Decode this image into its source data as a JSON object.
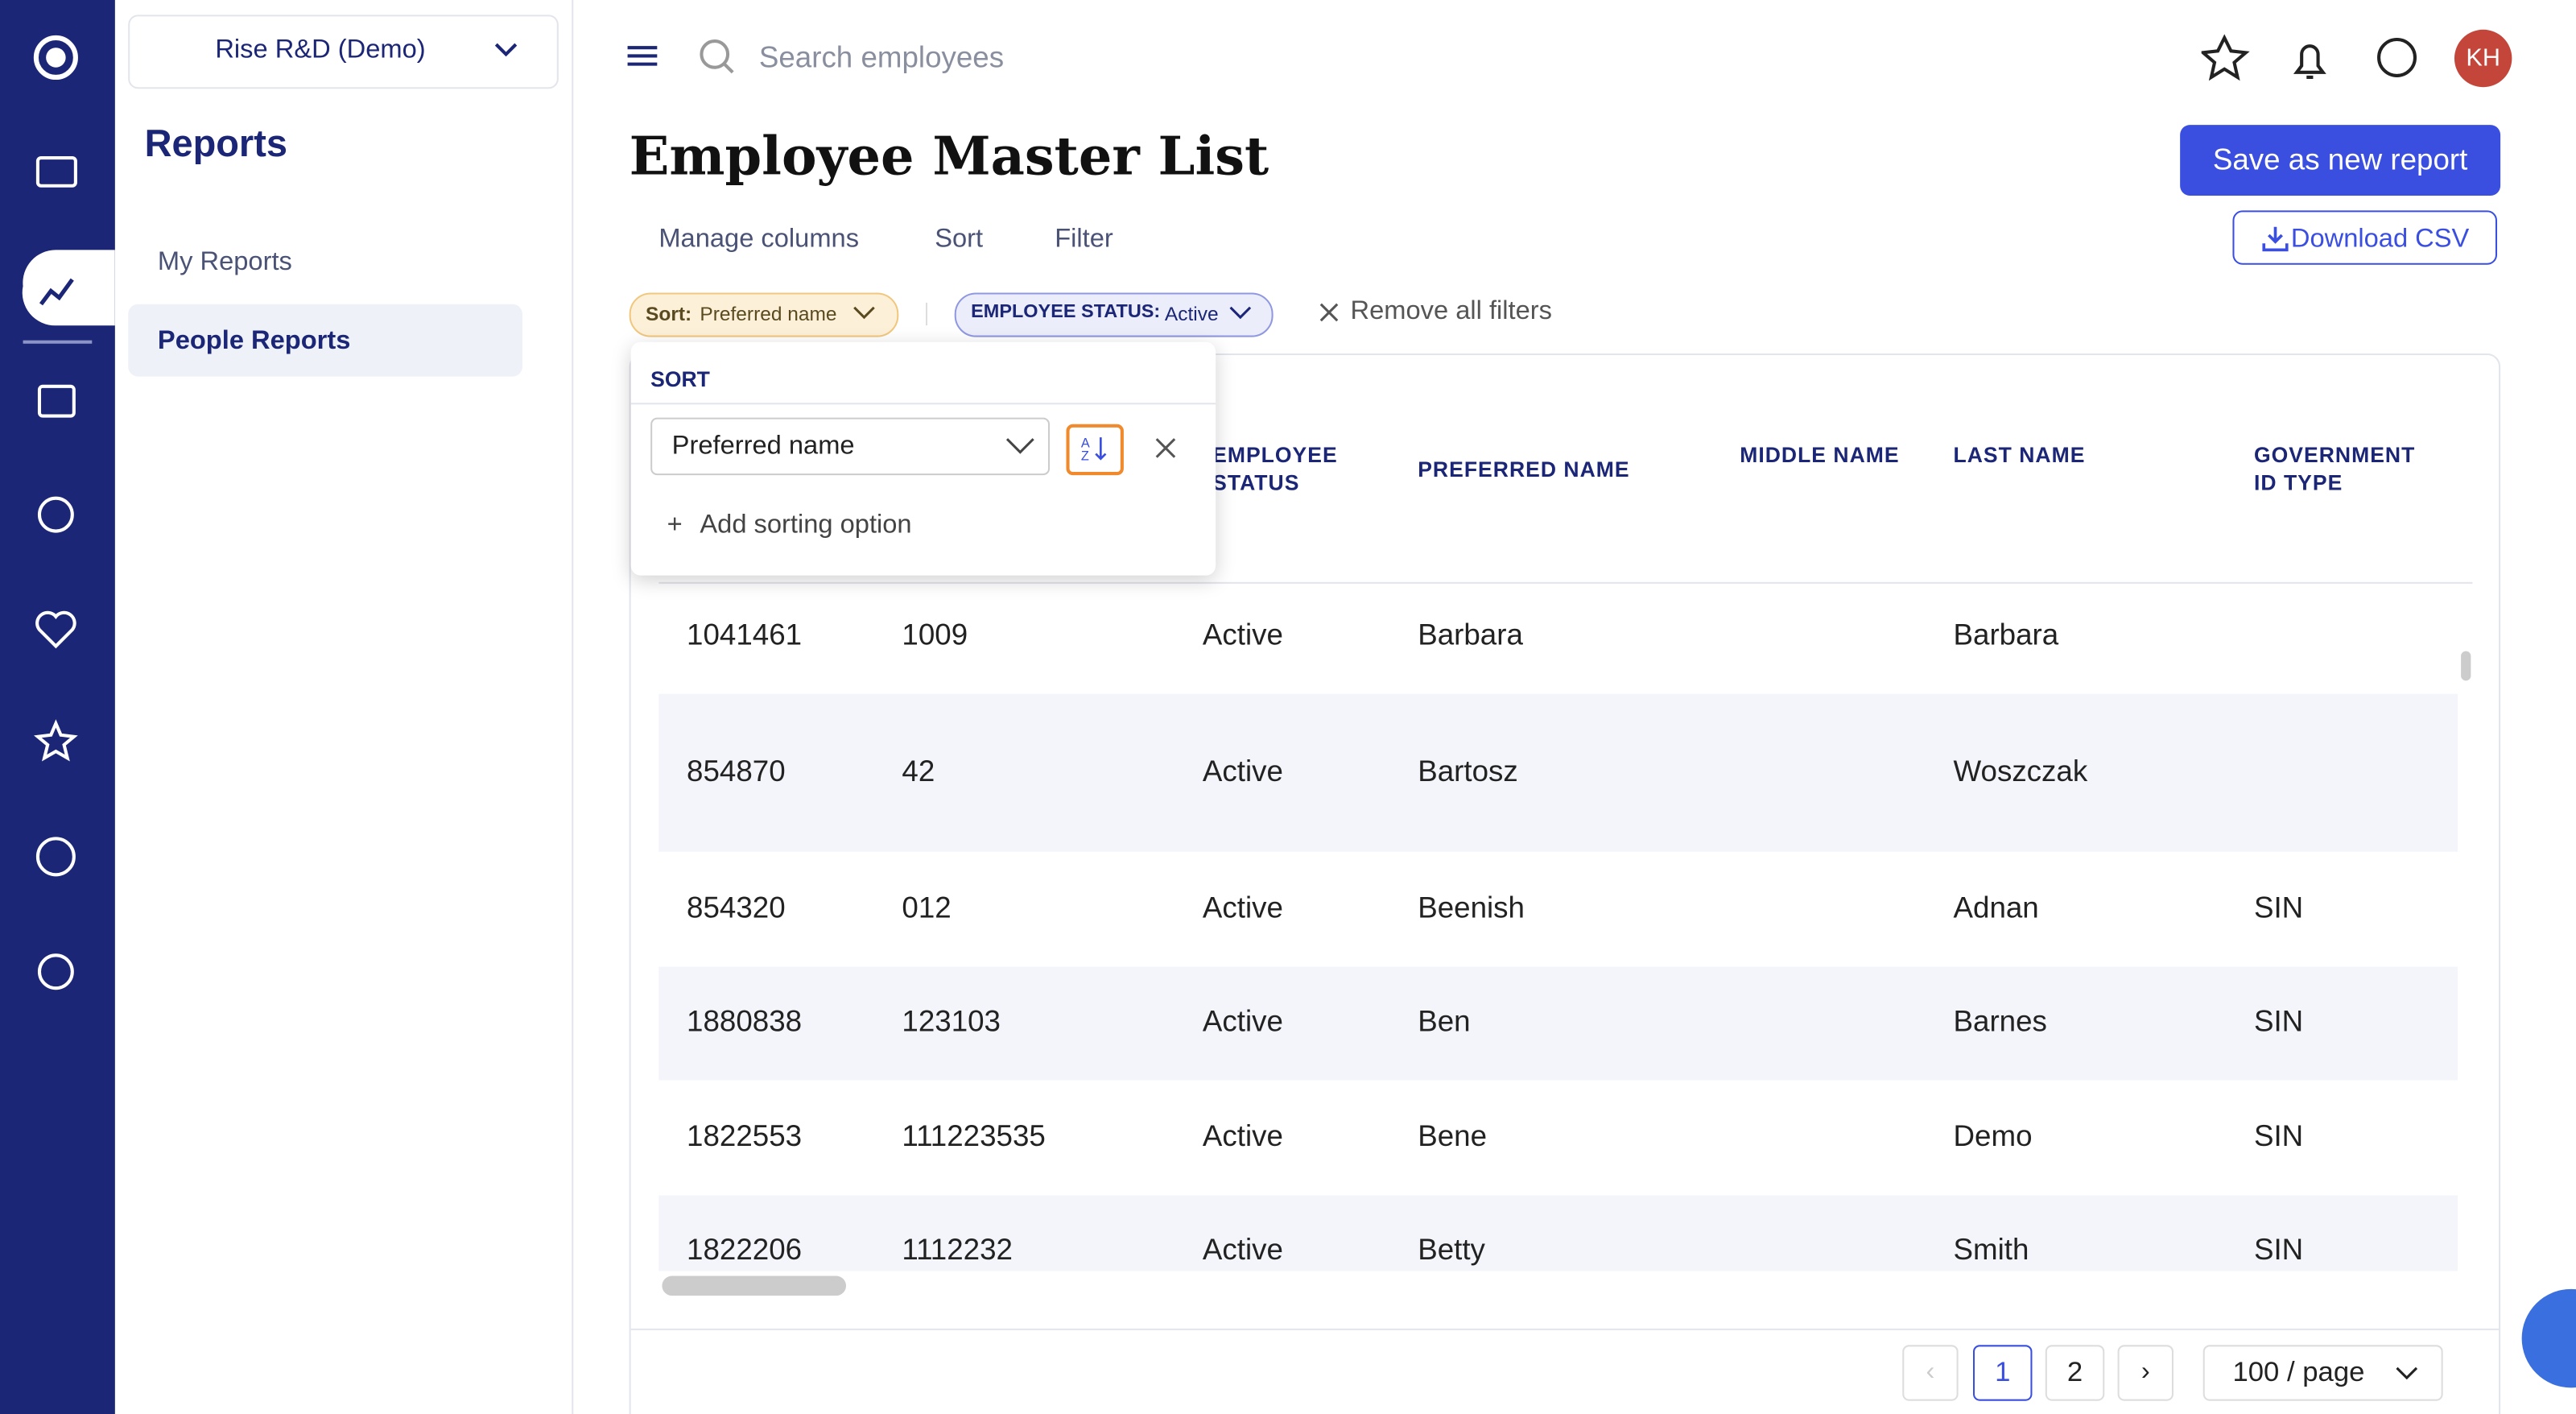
{
  "sidebar": {
    "workspace": "Rise R&D (Demo)",
    "title": "Reports",
    "nav": [
      "My Reports",
      "People Reports"
    ]
  },
  "topbar": {
    "search_placeholder": "Search employees",
    "avatar": "KH"
  },
  "header": {
    "title": "Employee Master List",
    "primary_button": "Save as new report",
    "secondary_button": "Download CSV"
  },
  "tabs": [
    "Manage columns",
    "Sort",
    "Filter"
  ],
  "chips": {
    "sort_label": "Sort:",
    "sort_value": "Preferred name",
    "filter_label": "EMPLOYEE STATUS:",
    "filter_value": "Active",
    "remove_all": "Remove all filters"
  },
  "sort_popover": {
    "title": "SORT",
    "field": "Preferred name",
    "add": "Add sorting option"
  },
  "table": {
    "headers": [
      null,
      null,
      "EMPLOYEE STATUS",
      "PREFERRED NAME",
      "MIDDLE NAME",
      "LAST NAME",
      "GOVERNMENT ID TYPE"
    ],
    "rows": [
      [
        "1041461",
        "1009",
        "Active",
        "Barbara",
        null,
        "Barbara",
        null
      ],
      [
        "854870",
        "42",
        "Active",
        "Bartosz",
        null,
        "Woszczak",
        null
      ],
      [
        "854320",
        "012",
        "Active",
        "Beenish",
        null,
        "Adnan",
        "SIN"
      ],
      [
        "1880838",
        "123103",
        "Active",
        "Ben",
        null,
        "Barnes",
        "SIN"
      ],
      [
        "1822553",
        "111223535",
        "Active",
        "Bene",
        null,
        "Demo",
        "SIN"
      ],
      [
        "1822206",
        "1112232",
        "Active",
        "Betty",
        null,
        "Smith",
        "SIN"
      ]
    ]
  },
  "pagination": {
    "pages": [
      1,
      2
    ],
    "page_size": "100 / page"
  }
}
